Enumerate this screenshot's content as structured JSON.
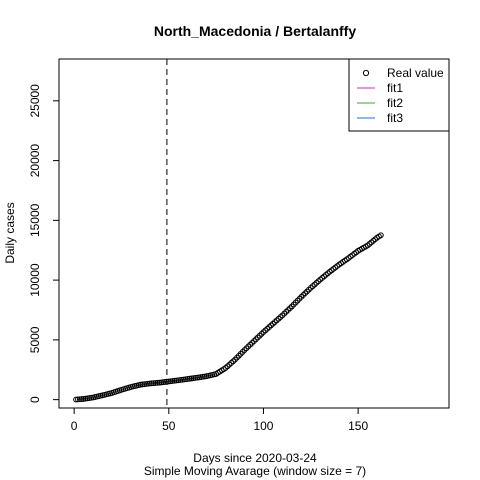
{
  "chart_data": {
    "type": "scatter",
    "title": "North_Macedonia / Bertalanffy",
    "xlabel": "Days since 2020-03-24",
    "sublabel": "Simple Moving Avarage (window size = 7)",
    "ylabel": "Daily cases",
    "xlim": [
      -8,
      198
    ],
    "ylim": [
      -700,
      28500
    ],
    "x_ticks": [
      0,
      50,
      100,
      150
    ],
    "y_ticks": [
      0,
      5000,
      10000,
      15000,
      20000,
      25000
    ],
    "vline": {
      "x": 49,
      "style": "dashed"
    },
    "legend": {
      "position": "top-right",
      "entries": [
        {
          "label": "Real value",
          "type": "point",
          "color": "#000000"
        },
        {
          "label": "fit1",
          "type": "line",
          "color": "#CC3399"
        },
        {
          "label": "fit2",
          "type": "line",
          "color": "#33AA33"
        },
        {
          "label": "fit3",
          "type": "line",
          "color": "#1F6FD0"
        }
      ]
    },
    "series": [
      {
        "name": "Real value",
        "style": "open-circle",
        "x_range": [
          1,
          162
        ],
        "points": [
          [
            1,
            10
          ],
          [
            5,
            60
          ],
          [
            10,
            180
          ],
          [
            15,
            360
          ],
          [
            20,
            560
          ],
          [
            25,
            820
          ],
          [
            30,
            1060
          ],
          [
            35,
            1250
          ],
          [
            40,
            1350
          ],
          [
            45,
            1420
          ],
          [
            50,
            1520
          ],
          [
            55,
            1620
          ],
          [
            60,
            1730
          ],
          [
            65,
            1840
          ],
          [
            70,
            1960
          ],
          [
            75,
            2150
          ],
          [
            80,
            2650
          ],
          [
            85,
            3350
          ],
          [
            90,
            4150
          ],
          [
            95,
            4900
          ],
          [
            100,
            5650
          ],
          [
            105,
            6350
          ],
          [
            110,
            7050
          ],
          [
            115,
            7800
          ],
          [
            120,
            8600
          ],
          [
            125,
            9350
          ],
          [
            130,
            10050
          ],
          [
            135,
            10700
          ],
          [
            140,
            11300
          ],
          [
            145,
            11850
          ],
          [
            150,
            12450
          ],
          [
            155,
            12900
          ],
          [
            160,
            13550
          ],
          [
            162,
            13750
          ]
        ]
      }
    ]
  }
}
